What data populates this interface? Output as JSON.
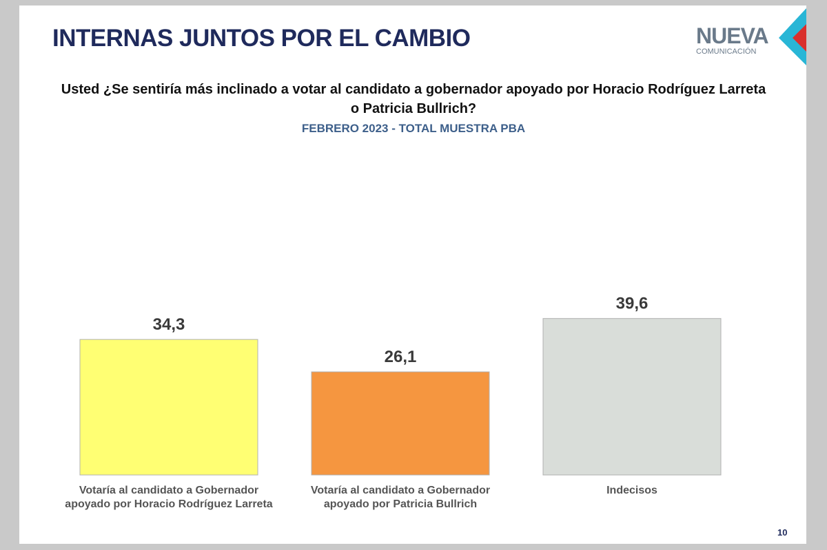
{
  "chart_data": {
    "type": "bar",
    "title": "INTERNAS JUNTOS POR EL CAMBIO",
    "subtitle": "Usted ¿Se sentiría más inclinado a votar al candidato a gobernador apoyado por Horacio Rodríguez Larreta o Patricia Bullrich?",
    "caption": "FEBRERO 2023 - TOTAL MUESTRA PBA",
    "categories": [
      "Votaría al candidato a Gobernador apoyado por Horacio Rodríguez Larreta",
      "Votaría al candidato a Gobernador apoyado por Patricia Bullrich",
      "Indecisos"
    ],
    "values": [
      34.3,
      26.1,
      39.6
    ],
    "value_labels": [
      "34,3",
      "26,1",
      "39,6"
    ],
    "colors": [
      "#ffff73",
      "#f59640",
      "#d9ddd9"
    ]
  },
  "logo": {
    "name": "NUEVA",
    "tagline": "COMUNICACIÓN"
  },
  "page_number": "10"
}
